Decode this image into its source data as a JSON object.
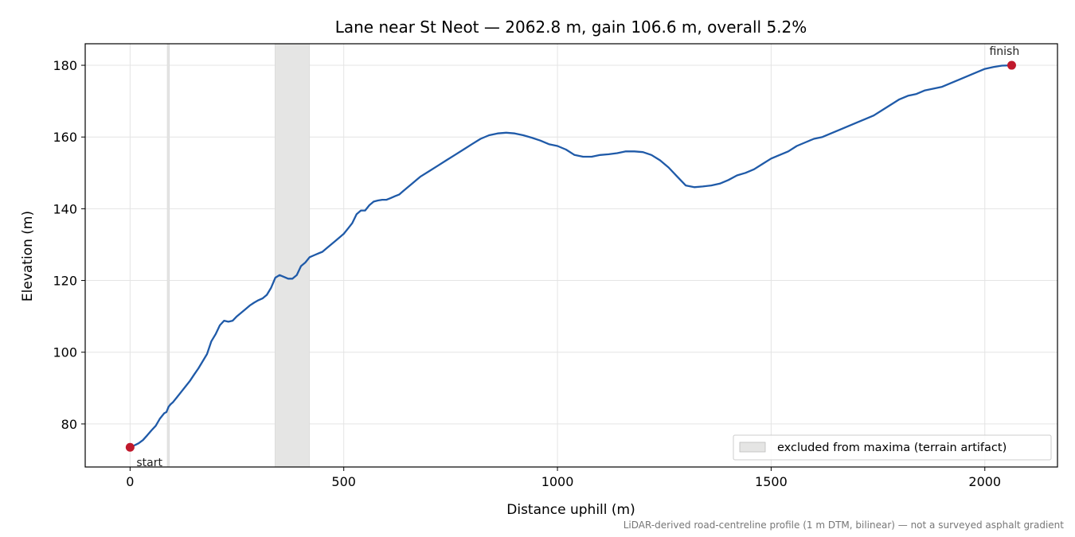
{
  "chart_data": {
    "type": "line",
    "title": "Lane near St Neot — 2062.8 m, gain 106.6 m, overall 5.2%",
    "xlabel": "Distance uphill (m)",
    "ylabel": "Elevation (m)",
    "xlim": [
      -105,
      2170
    ],
    "ylim": [
      68,
      186
    ],
    "xticks": [
      0,
      500,
      1000,
      1500,
      2000
    ],
    "yticks": [
      80,
      100,
      120,
      140,
      160,
      180
    ],
    "grid": true,
    "legend_position": "bottom-right",
    "line_color": "#1f5aa8",
    "marker_color": "#c0192c",
    "band_color": "#e5e5e4",
    "series": [
      {
        "x": [
          0,
          10,
          20,
          30,
          40,
          50,
          60,
          70,
          80,
          85,
          90,
          95,
          100,
          110,
          120,
          130,
          140,
          150,
          160,
          170,
          180,
          190,
          200,
          210,
          220,
          230,
          240,
          250,
          260,
          270,
          280,
          290,
          300,
          310,
          320,
          330,
          340,
          350,
          360,
          370,
          380,
          390,
          400,
          410,
          420,
          430,
          440,
          450,
          460,
          470,
          480,
          490,
          500,
          510,
          520,
          530,
          540,
          550,
          560,
          570,
          580,
          590,
          600,
          610,
          620,
          630,
          640,
          650,
          660,
          670,
          680,
          700,
          720,
          740,
          760,
          780,
          800,
          820,
          840,
          860,
          880,
          900,
          920,
          940,
          960,
          980,
          1000,
          1020,
          1040,
          1060,
          1080,
          1100,
          1120,
          1140,
          1160,
          1180,
          1200,
          1220,
          1240,
          1260,
          1280,
          1300,
          1320,
          1340,
          1360,
          1380,
          1400,
          1420,
          1440,
          1460,
          1480,
          1500,
          1520,
          1540,
          1560,
          1580,
          1600,
          1620,
          1640,
          1660,
          1680,
          1700,
          1720,
          1740,
          1760,
          1780,
          1800,
          1820,
          1840,
          1860,
          1880,
          1900,
          1920,
          1940,
          1960,
          1980,
          2000,
          2020,
          2040,
          2062.8
        ],
        "y": [
          73.5,
          74.0,
          74.6,
          75.5,
          76.8,
          78.2,
          79.5,
          81.5,
          83.0,
          83.3,
          84.8,
          85.5,
          86.0,
          87.5,
          89.0,
          90.5,
          92.0,
          93.8,
          95.5,
          97.5,
          99.5,
          103.0,
          105.0,
          107.5,
          108.8,
          108.5,
          108.8,
          110.0,
          111.0,
          112.0,
          113.0,
          113.8,
          114.5,
          115.0,
          116.0,
          118.0,
          120.8,
          121.5,
          121.0,
          120.5,
          120.5,
          121.5,
          124.0,
          125.0,
          126.5,
          127.0,
          127.5,
          128.0,
          129.0,
          130.0,
          131.0,
          132.0,
          133.0,
          134.5,
          136.0,
          138.5,
          139.5,
          139.5,
          141.0,
          142.0,
          142.3,
          142.5,
          142.5,
          143.0,
          143.5,
          144.0,
          145.0,
          146.0,
          147.0,
          148.0,
          149.0,
          150.5,
          152.0,
          153.5,
          155.0,
          156.5,
          158.0,
          159.5,
          160.5,
          161.0,
          161.2,
          161.0,
          160.5,
          159.8,
          159.0,
          158.0,
          157.5,
          156.5,
          155.0,
          154.5,
          154.5,
          155.0,
          155.2,
          155.5,
          156.0,
          156.0,
          155.8,
          155.0,
          153.5,
          151.5,
          149.0,
          146.5,
          146.0,
          146.2,
          146.5,
          147.0,
          148.0,
          149.3,
          150.0,
          151.0,
          152.5,
          154.0,
          155.0,
          156.0,
          157.5,
          158.5,
          159.5,
          160.0,
          161.0,
          162.0,
          163.0,
          164.0,
          165.0,
          166.0,
          167.5,
          169.0,
          170.5,
          171.5,
          172.0,
          173.0,
          173.5,
          174.0,
          175.0,
          176.0,
          177.0,
          178.0,
          179.0,
          179.5,
          179.9,
          180.0
        ]
      }
    ],
    "excluded_bands": [
      [
        87,
        92
      ],
      [
        339,
        420
      ]
    ],
    "points": [
      {
        "label": "start",
        "x": 0,
        "y": 73.5
      },
      {
        "label": "finish",
        "x": 2062.8,
        "y": 180.0
      }
    ],
    "legend": [
      {
        "label": "excluded from maxima (terrain artifact)"
      }
    ],
    "footnote": "LiDAR-derived road-centreline profile (1 m DTM, bilinear) — not a surveyed asphalt gradient"
  }
}
